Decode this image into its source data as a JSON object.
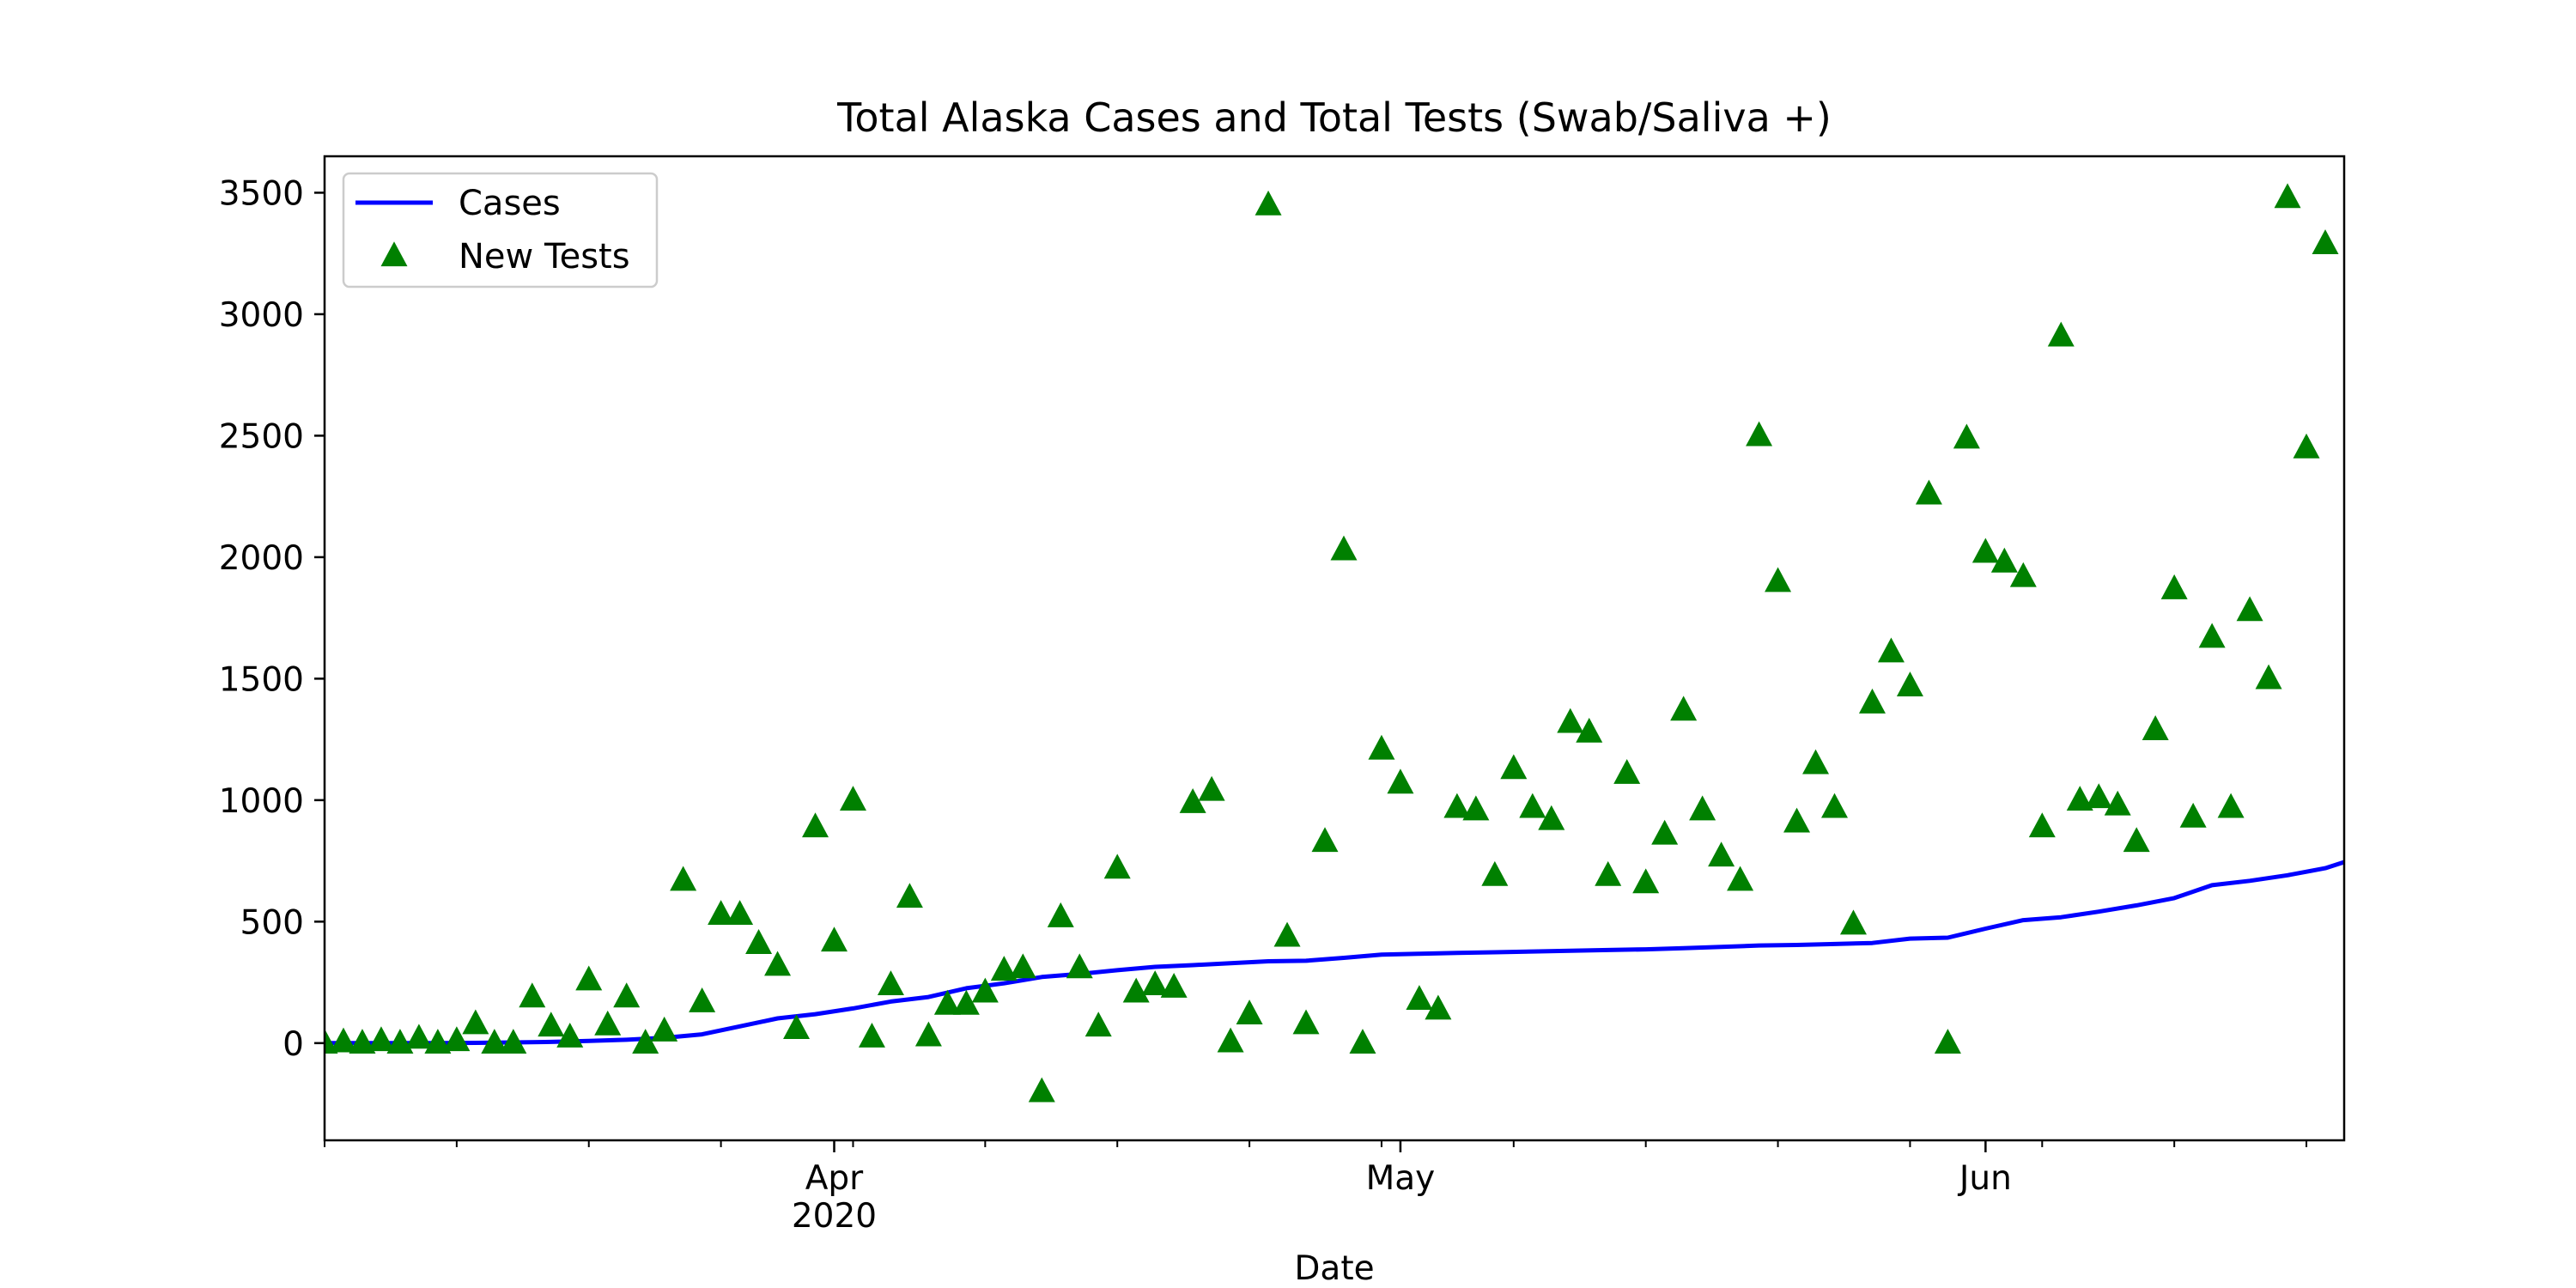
{
  "chart_data": {
    "type": "line",
    "title": "Total Alaska Cases and Total Tests (Swab/Saliva +)",
    "xlabel": "Date",
    "ylabel": "",
    "xlim": [
      "2020-03-05",
      "2020-06-20"
    ],
    "ylim": [
      -400,
      3650
    ],
    "yticks": [
      0,
      500,
      1000,
      1500,
      2000,
      2500,
      3000,
      3500
    ],
    "xticks": [
      {
        "date": "2020-04-01",
        "label": "Apr",
        "sublabel": "2020"
      },
      {
        "date": "2020-05-01",
        "label": "May",
        "sublabel": ""
      },
      {
        "date": "2020-06-01",
        "label": "Jun",
        "sublabel": ""
      }
    ],
    "legend": {
      "position": "top-left",
      "entries": [
        "Cases",
        "New Tests"
      ]
    },
    "grid": false,
    "series": [
      {
        "name": "Cases",
        "kind": "line",
        "color": "#0000ff",
        "points": [
          [
            "2020-03-05",
            0
          ],
          [
            "2020-03-10",
            0
          ],
          [
            "2020-03-13",
            1
          ],
          [
            "2020-03-15",
            3
          ],
          [
            "2020-03-17",
            5
          ],
          [
            "2020-03-19",
            9
          ],
          [
            "2020-03-21",
            14
          ],
          [
            "2020-03-23",
            22
          ],
          [
            "2020-03-25",
            36
          ],
          [
            "2020-03-27",
            69
          ],
          [
            "2020-03-29",
            102
          ],
          [
            "2020-03-31",
            119
          ],
          [
            "2020-04-02",
            143
          ],
          [
            "2020-04-04",
            171
          ],
          [
            "2020-04-06",
            190
          ],
          [
            "2020-04-08",
            226
          ],
          [
            "2020-04-10",
            246
          ],
          [
            "2020-04-12",
            272
          ],
          [
            "2020-04-14",
            285
          ],
          [
            "2020-04-16",
            300
          ],
          [
            "2020-04-18",
            314
          ],
          [
            "2020-04-20",
            321
          ],
          [
            "2020-04-22",
            329
          ],
          [
            "2020-04-24",
            337
          ],
          [
            "2020-04-26",
            339
          ],
          [
            "2020-04-28",
            351
          ],
          [
            "2020-04-30",
            364
          ],
          [
            "2020-05-02",
            368
          ],
          [
            "2020-05-04",
            371
          ],
          [
            "2020-05-06",
            374
          ],
          [
            "2020-05-08",
            377
          ],
          [
            "2020-05-10",
            380
          ],
          [
            "2020-05-12",
            383
          ],
          [
            "2020-05-14",
            386
          ],
          [
            "2020-05-16",
            391
          ],
          [
            "2020-05-18",
            396
          ],
          [
            "2020-05-20",
            402
          ],
          [
            "2020-05-22",
            404
          ],
          [
            "2020-05-24",
            408
          ],
          [
            "2020-05-26",
            412
          ],
          [
            "2020-05-28",
            430
          ],
          [
            "2020-05-30",
            434
          ],
          [
            "2020-06-01",
            471
          ],
          [
            "2020-06-03",
            506
          ],
          [
            "2020-06-05",
            518
          ],
          [
            "2020-06-07",
            541
          ],
          [
            "2020-06-09",
            567
          ],
          [
            "2020-06-11",
            597
          ],
          [
            "2020-06-13",
            650
          ],
          [
            "2020-06-15",
            668
          ],
          [
            "2020-06-17",
            691
          ],
          [
            "2020-06-19",
            720
          ],
          [
            "2020-06-20",
            745
          ]
        ]
      },
      {
        "name": "New Tests",
        "kind": "scatter",
        "marker": "triangle-up",
        "color": "#008000",
        "points": [
          [
            "2020-03-05",
            0
          ],
          [
            "2020-03-06",
            5
          ],
          [
            "2020-03-07",
            0
          ],
          [
            "2020-03-08",
            10
          ],
          [
            "2020-03-09",
            0
          ],
          [
            "2020-03-10",
            20
          ],
          [
            "2020-03-11",
            0
          ],
          [
            "2020-03-12",
            10
          ],
          [
            "2020-03-13",
            80
          ],
          [
            "2020-03-14",
            0
          ],
          [
            "2020-03-15",
            0
          ],
          [
            "2020-03-16",
            190
          ],
          [
            "2020-03-17",
            70
          ],
          [
            "2020-03-18",
            25
          ],
          [
            "2020-03-19",
            260
          ],
          [
            "2020-03-20",
            75
          ],
          [
            "2020-03-21",
            190
          ],
          [
            "2020-03-22",
            0
          ],
          [
            "2020-03-23",
            50
          ],
          [
            "2020-03-24",
            670
          ],
          [
            "2020-03-25",
            170
          ],
          [
            "2020-03-26",
            530
          ],
          [
            "2020-03-27",
            530
          ],
          [
            "2020-03-28",
            410
          ],
          [
            "2020-03-29",
            320
          ],
          [
            "2020-03-30",
            60
          ],
          [
            "2020-03-31",
            890
          ],
          [
            "2020-04-01",
            420
          ],
          [
            "2020-04-02",
            1000
          ],
          [
            "2020-04-03",
            25
          ],
          [
            "2020-04-04",
            240
          ],
          [
            "2020-04-05",
            600
          ],
          [
            "2020-04-06",
            30
          ],
          [
            "2020-04-07",
            160
          ],
          [
            "2020-04-08",
            160
          ],
          [
            "2020-04-09",
            210
          ],
          [
            "2020-04-10",
            300
          ],
          [
            "2020-04-11",
            310
          ],
          [
            "2020-04-12",
            -200
          ],
          [
            "2020-04-13",
            520
          ],
          [
            "2020-04-14",
            310
          ],
          [
            "2020-04-15",
            70
          ],
          [
            "2020-04-16",
            720
          ],
          [
            "2020-04-17",
            210
          ],
          [
            "2020-04-18",
            240
          ],
          [
            "2020-04-19",
            230
          ],
          [
            "2020-04-20",
            990
          ],
          [
            "2020-04-21",
            1040
          ],
          [
            "2020-04-22",
            5
          ],
          [
            "2020-04-23",
            120
          ],
          [
            "2020-04-24",
            3450
          ],
          [
            "2020-04-25",
            440
          ],
          [
            "2020-04-26",
            80
          ],
          [
            "2020-04-27",
            830
          ],
          [
            "2020-04-28",
            2030
          ],
          [
            "2020-04-29",
            0
          ],
          [
            "2020-04-30",
            1210
          ],
          [
            "2020-05-01",
            1070
          ],
          [
            "2020-05-02",
            180
          ],
          [
            "2020-05-03",
            140
          ],
          [
            "2020-05-04",
            970
          ],
          [
            "2020-05-05",
            960
          ],
          [
            "2020-05-06",
            690
          ],
          [
            "2020-05-07",
            1130
          ],
          [
            "2020-05-08",
            970
          ],
          [
            "2020-05-09",
            920
          ],
          [
            "2020-05-10",
            1320
          ],
          [
            "2020-05-11",
            1280
          ],
          [
            "2020-05-12",
            690
          ],
          [
            "2020-05-13",
            1110
          ],
          [
            "2020-05-14",
            660
          ],
          [
            "2020-05-15",
            860
          ],
          [
            "2020-05-16",
            1370
          ],
          [
            "2020-05-17",
            960
          ],
          [
            "2020-05-18",
            770
          ],
          [
            "2020-05-19",
            670
          ],
          [
            "2020-05-20",
            2500
          ],
          [
            "2020-05-21",
            1900
          ],
          [
            "2020-05-22",
            910
          ],
          [
            "2020-05-23",
            1150
          ],
          [
            "2020-05-24",
            970
          ],
          [
            "2020-05-25",
            490
          ],
          [
            "2020-05-26",
            1400
          ],
          [
            "2020-05-27",
            1610
          ],
          [
            "2020-05-28",
            1470
          ],
          [
            "2020-05-29",
            2260
          ],
          [
            "2020-05-30",
            0
          ],
          [
            "2020-05-31",
            2490
          ],
          [
            "2020-06-01",
            2020
          ],
          [
            "2020-06-02",
            1980
          ],
          [
            "2020-06-03",
            1920
          ],
          [
            "2020-06-04",
            890
          ],
          [
            "2020-06-05",
            2910
          ],
          [
            "2020-06-06",
            1000
          ],
          [
            "2020-06-07",
            1010
          ],
          [
            "2020-06-08",
            980
          ],
          [
            "2020-06-09",
            830
          ],
          [
            "2020-06-10",
            1290
          ],
          [
            "2020-06-11",
            1870
          ],
          [
            "2020-06-12",
            930
          ],
          [
            "2020-06-13",
            1670
          ],
          [
            "2020-06-14",
            970
          ],
          [
            "2020-06-15",
            1780
          ],
          [
            "2020-06-16",
            1500
          ],
          [
            "2020-06-17",
            3480
          ],
          [
            "2020-06-18",
            2450
          ],
          [
            "2020-06-19",
            3290
          ]
        ]
      }
    ]
  }
}
